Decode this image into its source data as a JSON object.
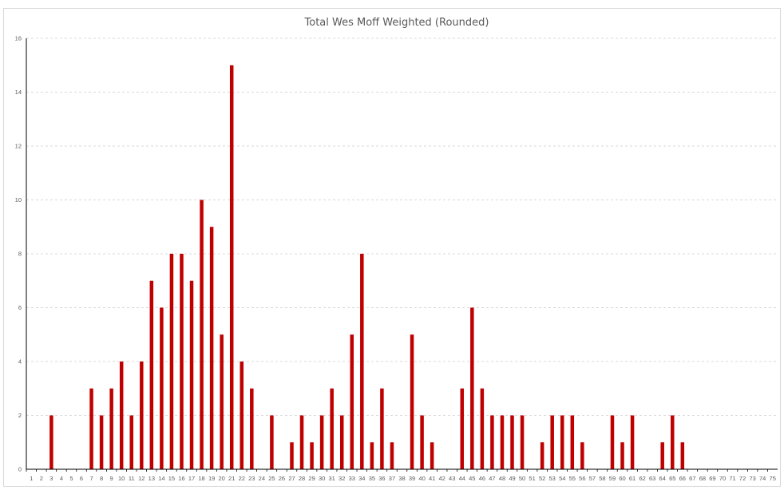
{
  "chart_data": {
    "type": "bar",
    "title": "Total Wes Moff Weighted (Rounded)",
    "xlabel": "",
    "ylabel": "",
    "ylim": [
      0,
      16
    ],
    "yticks": [
      0,
      2,
      4,
      6,
      8,
      10,
      12,
      14,
      16
    ],
    "grid": true,
    "legend": "none",
    "bar_color": "#C00000",
    "categories": [
      "1",
      "2",
      "3",
      "4",
      "5",
      "6",
      "7",
      "8",
      "9",
      "10",
      "11",
      "12",
      "13",
      "14",
      "15",
      "16",
      "17",
      "18",
      "19",
      "20",
      "21",
      "22",
      "23",
      "24",
      "25",
      "26",
      "27",
      "28",
      "29",
      "30",
      "31",
      "32",
      "33",
      "34",
      "35",
      "36",
      "37",
      "38",
      "39",
      "40",
      "41",
      "42",
      "43",
      "44",
      "45",
      "46",
      "47",
      "48",
      "49",
      "50",
      "51",
      "52",
      "53",
      "54",
      "55",
      "56",
      "57",
      "58",
      "59",
      "60",
      "61",
      "62",
      "63",
      "64",
      "65",
      "66",
      "67",
      "68",
      "69",
      "70",
      "71",
      "72",
      "73",
      "74",
      "75"
    ],
    "values": [
      0,
      0,
      2,
      0,
      0,
      0,
      3,
      2,
      3,
      4,
      2,
      4,
      7,
      6,
      8,
      8,
      7,
      10,
      9,
      5,
      15,
      4,
      3,
      0,
      2,
      0,
      1,
      2,
      1,
      2,
      3,
      2,
      5,
      8,
      1,
      3,
      1,
      0,
      5,
      2,
      1,
      0,
      0,
      3,
      6,
      3,
      2,
      2,
      2,
      2,
      0,
      1,
      2,
      2,
      2,
      1,
      0,
      0,
      2,
      1,
      2,
      0,
      0,
      1,
      2,
      1,
      0,
      0,
      0,
      0,
      0,
      0,
      0,
      0,
      0
    ]
  }
}
